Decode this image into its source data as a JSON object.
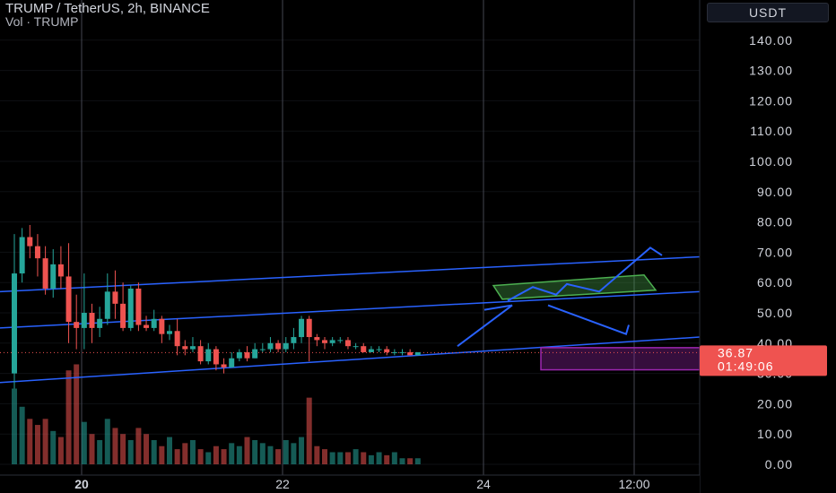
{
  "header": {
    "title": "TRUMP / TetherUS, 2h, BINANCE",
    "volume_label": "Vol · TRUMP"
  },
  "currency_button": "USDT",
  "price_tag": {
    "price": "36.87",
    "countdown": "01:49:06"
  },
  "colors": {
    "up": "#26a69a",
    "down": "#ef5350",
    "trendline": "#2962ff",
    "rect_fill": "#4caf50",
    "target_box": "#9c27b0",
    "grid": "#2a2e39",
    "tag": "#ef5350"
  },
  "chart_data": {
    "type": "candlestick",
    "y_axis_ticks": [
      "140.00",
      "130.00",
      "120.00",
      "110.00",
      "100.00",
      "90.00",
      "80.00",
      "70.00",
      "60.00",
      "50.00",
      "40.00",
      "30.00",
      "20.00",
      "10.00",
      "0.00"
    ],
    "ylim": [
      0,
      147
    ],
    "x_axis_ticks": [
      "20",
      "22",
      "24",
      "12:00"
    ],
    "last_price": 36.87,
    "candles": [
      [
        30,
        63,
        25,
        76
      ],
      [
        63,
        75,
        60,
        78
      ],
      [
        75,
        72,
        68,
        79
      ],
      [
        72,
        68,
        62,
        76
      ],
      [
        68,
        58,
        56,
        72
      ],
      [
        58,
        66,
        55,
        71
      ],
      [
        66,
        62,
        58,
        72
      ],
      [
        62,
        47,
        40,
        73
      ],
      [
        47,
        45,
        38,
        56
      ],
      [
        45,
        50,
        38,
        63
      ],
      [
        50,
        45,
        40,
        53
      ],
      [
        45,
        48,
        42,
        52
      ],
      [
        48,
        57,
        46,
        63
      ],
      [
        57,
        53,
        48,
        64
      ],
      [
        53,
        45,
        44,
        60
      ],
      [
        45,
        58,
        44,
        59
      ],
      [
        58,
        46,
        44,
        60
      ],
      [
        46,
        45,
        44,
        49
      ],
      [
        45,
        48,
        44,
        51
      ],
      [
        48,
        43,
        40,
        49
      ],
      [
        43,
        44,
        41,
        46
      ],
      [
        44,
        39,
        36,
        48
      ],
      [
        39,
        38,
        36,
        41
      ],
      [
        38,
        39,
        37,
        42
      ],
      [
        39,
        34,
        33,
        41
      ],
      [
        34,
        38,
        33,
        40
      ],
      [
        38,
        33,
        31,
        39
      ],
      [
        33,
        32,
        30,
        35
      ],
      [
        32,
        35,
        32,
        37
      ],
      [
        35,
        37,
        34,
        38
      ],
      [
        37,
        35,
        34,
        39
      ],
      [
        35,
        38,
        35,
        40
      ],
      [
        38,
        38,
        37,
        40
      ],
      [
        38,
        40,
        37,
        42
      ],
      [
        40,
        38,
        37,
        41
      ],
      [
        38,
        40,
        37,
        42
      ],
      [
        40,
        42,
        38,
        45
      ],
      [
        42,
        48,
        40,
        49
      ],
      [
        48,
        42,
        34,
        49
      ],
      [
        42,
        41,
        39,
        43
      ],
      [
        41,
        40,
        38,
        42
      ],
      [
        40,
        41,
        39,
        42
      ],
      [
        41,
        41,
        40,
        42
      ],
      [
        41,
        39,
        38,
        42
      ],
      [
        39,
        39,
        38,
        40
      ],
      [
        39,
        37,
        37,
        40
      ],
      [
        37,
        38,
        37,
        39
      ],
      [
        38,
        38,
        37,
        39
      ],
      [
        38,
        37,
        36,
        39
      ],
      [
        37,
        37,
        36,
        38
      ],
      [
        37,
        37,
        36,
        38
      ],
      [
        37,
        36,
        36,
        38
      ],
      [
        36,
        37,
        36,
        37
      ]
    ],
    "volumes": [
      25,
      19,
      15,
      13,
      15,
      11,
      9,
      31,
      33,
      14,
      10,
      8,
      15,
      12,
      10,
      8,
      12,
      10,
      8,
      6,
      9,
      5,
      7,
      8,
      5,
      4,
      6,
      5,
      7,
      6,
      9,
      8,
      7,
      6,
      5,
      8,
      7,
      9,
      22,
      6,
      5,
      4,
      4,
      4,
      5,
      4,
      3,
      4,
      3,
      4,
      2,
      2,
      2
    ],
    "trendlines": [
      {
        "p1": [
          0,
          57
        ],
        "p2": [
          780,
          68.5
        ]
      },
      {
        "p1": [
          0,
          45
        ],
        "p2": [
          780,
          57
        ]
      },
      {
        "p1": [
          0,
          27
        ],
        "p2": [
          780,
          42
        ]
      }
    ]
  }
}
